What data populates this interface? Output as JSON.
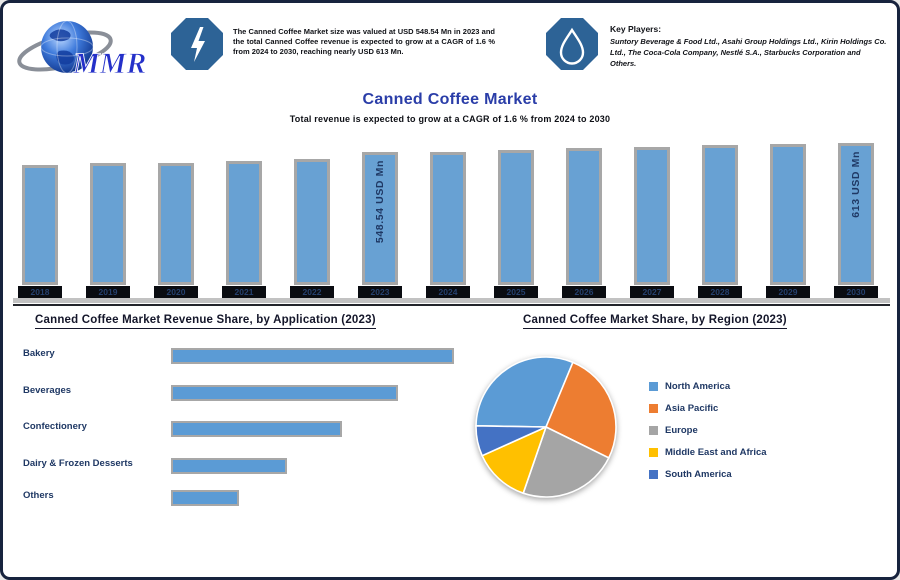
{
  "header": {
    "logo_text": "MMR",
    "market_summary": "The Canned Coffee Market size was valued at USD 548.54 Mn in 2023 and the total Canned Coffee revenue is expected to grow at a CAGR of 1.6 % from 2024 to 2030, reaching nearly USD 613 Mn.",
    "players_label": "Key Players:",
    "players": "Suntory Beverage & Food Ltd., Asahi Group Holdings Ltd., Kirin Holdings Co. Ltd., The Coca-Cola Company, Nestlé S.A., Starbucks Corporation and Others."
  },
  "colors": {
    "bar_fill": "#68A1D3",
    "bar_border": "#A7A7A7",
    "hbar_fill": "#5B9BD5",
    "navy_text": "#1F3864",
    "title_blue": "#2A3DA8"
  },
  "chart_data": [
    {
      "type": "bar",
      "title": "Canned Coffee Market",
      "subtitle": "Total revenue is expected to grow at a CAGR of 1.6 % from 2024 to 2030",
      "unit": "USD Mn",
      "categories": [
        "2018",
        "2019",
        "2020",
        "2021",
        "2022",
        "2023",
        "2024",
        "2025",
        "2026",
        "2027",
        "2028",
        "2029",
        "2030"
      ],
      "values": [
        455,
        470,
        472,
        482,
        497,
        548.54,
        550,
        560,
        578,
        585,
        598,
        604,
        613
      ],
      "labeled_points": [
        {
          "category": "2023",
          "label": "548.54 USD Mn"
        },
        {
          "category": "2030",
          "label": "613 USD Mn"
        }
      ],
      "ylim": [
        440,
        620
      ],
      "grid": false,
      "legend": "none"
    },
    {
      "type": "bar",
      "orientation": "horizontal",
      "title": "Canned Coffee Market Revenue Share, by Application (2023)",
      "categories": [
        "Bakery",
        "Beverages",
        "Confectionery",
        "Dairy & Frozen Desserts",
        "Others"
      ],
      "values": [
        35,
        28,
        21,
        14,
        8
      ],
      "unit": "%",
      "grid": false,
      "legend": "none"
    },
    {
      "type": "pie",
      "title": "Canned Coffee Market Share, by Region (2023)",
      "labels": [
        "North America",
        "Asia Pacific",
        "Europe",
        "Middle East and Africa",
        "South America"
      ],
      "values": [
        31,
        26,
        23,
        13,
        7
      ],
      "colors": [
        "#5B9BD5",
        "#ED7D31",
        "#A5A5A5",
        "#FFC000",
        "#4472C4"
      ],
      "start_angle": 271,
      "legend_position": "right"
    }
  ]
}
